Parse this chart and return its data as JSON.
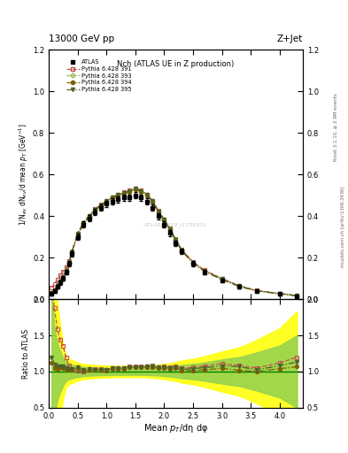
{
  "title_top": "13000 GeV pp",
  "title_right": "Z+Jet",
  "plot_title": "Nch (ATLAS UE in Z production)",
  "xlabel": "Mean $p_{T}$/dη dφ",
  "ylabel_main": "1/N$_{ev}$ dN$_{ev}$/d mean $p_{T}$ [GeV$^{-1}$]",
  "ylabel_ratio": "Ratio to ATLAS",
  "watermark": "ATLAS_2019_I1736531",
  "right_label_top": "Rivet 3.1.10, ≥ 2.9M events",
  "right_label_bot": "mcplots.cern.ch [arXiv:1306.3436]",
  "x_data": [
    0.05,
    0.1,
    0.15,
    0.2,
    0.25,
    0.3,
    0.35,
    0.4,
    0.5,
    0.6,
    0.7,
    0.8,
    0.9,
    1.0,
    1.1,
    1.2,
    1.3,
    1.4,
    1.5,
    1.6,
    1.7,
    1.8,
    1.9,
    2.0,
    2.1,
    2.2,
    2.3,
    2.5,
    2.7,
    3.0,
    3.3,
    3.6,
    4.0,
    4.3
  ],
  "atlas_y": [
    0.025,
    0.04,
    0.06,
    0.08,
    0.1,
    0.13,
    0.17,
    0.22,
    0.3,
    0.36,
    0.39,
    0.42,
    0.44,
    0.46,
    0.47,
    0.48,
    0.49,
    0.49,
    0.5,
    0.49,
    0.47,
    0.44,
    0.4,
    0.36,
    0.32,
    0.27,
    0.23,
    0.17,
    0.13,
    0.09,
    0.06,
    0.04,
    0.025,
    0.015
  ],
  "atlas_err": [
    0.008,
    0.008,
    0.009,
    0.01,
    0.01,
    0.011,
    0.012,
    0.014,
    0.015,
    0.015,
    0.015,
    0.015,
    0.015,
    0.015,
    0.015,
    0.015,
    0.015,
    0.015,
    0.015,
    0.015,
    0.015,
    0.015,
    0.015,
    0.015,
    0.015,
    0.014,
    0.014,
    0.012,
    0.011,
    0.01,
    0.008,
    0.007,
    0.006,
    0.005
  ],
  "py391_y": [
    0.055,
    0.075,
    0.095,
    0.115,
    0.135,
    0.155,
    0.185,
    0.225,
    0.305,
    0.36,
    0.4,
    0.435,
    0.455,
    0.47,
    0.49,
    0.505,
    0.515,
    0.525,
    0.535,
    0.525,
    0.505,
    0.475,
    0.425,
    0.385,
    0.34,
    0.29,
    0.24,
    0.18,
    0.14,
    0.1,
    0.065,
    0.042,
    0.028,
    0.018
  ],
  "py393_y": [
    0.03,
    0.044,
    0.064,
    0.086,
    0.107,
    0.137,
    0.177,
    0.227,
    0.317,
    0.367,
    0.402,
    0.432,
    0.452,
    0.472,
    0.492,
    0.502,
    0.512,
    0.522,
    0.532,
    0.522,
    0.502,
    0.472,
    0.422,
    0.382,
    0.337,
    0.287,
    0.237,
    0.177,
    0.137,
    0.097,
    0.064,
    0.041,
    0.027,
    0.017
  ],
  "py394_y": [
    0.028,
    0.042,
    0.062,
    0.085,
    0.105,
    0.135,
    0.175,
    0.225,
    0.315,
    0.365,
    0.398,
    0.428,
    0.448,
    0.468,
    0.488,
    0.498,
    0.508,
    0.518,
    0.528,
    0.518,
    0.498,
    0.468,
    0.418,
    0.378,
    0.333,
    0.283,
    0.233,
    0.173,
    0.133,
    0.094,
    0.061,
    0.04,
    0.026,
    0.016
  ],
  "py395_y": [
    0.03,
    0.044,
    0.064,
    0.086,
    0.107,
    0.137,
    0.177,
    0.227,
    0.317,
    0.367,
    0.402,
    0.432,
    0.452,
    0.472,
    0.492,
    0.502,
    0.512,
    0.522,
    0.532,
    0.522,
    0.502,
    0.472,
    0.422,
    0.382,
    0.337,
    0.287,
    0.237,
    0.177,
    0.137,
    0.097,
    0.064,
    0.041,
    0.027,
    0.017
  ],
  "color_391": "#c0504d",
  "color_393": "#9bbb59",
  "color_394": "#7f6000",
  "color_395": "#4f6228",
  "band_yellow": "#ffff00",
  "band_green": "#92d050",
  "xlim": [
    0.0,
    4.4
  ],
  "ylim_main": [
    0.0,
    1.2
  ],
  "ylim_ratio": [
    0.5,
    2.0
  ],
  "yticks_main": [
    0.0,
    0.2,
    0.4,
    0.6,
    0.8,
    1.0,
    1.2
  ],
  "yticks_ratio": [
    0.5,
    1.0,
    1.5,
    2.0
  ],
  "legend_entries": [
    "ATLAS",
    "Pythia 6.428 391",
    "Pythia 6.428 393",
    "Pythia 6.428 394",
    "Pythia 6.428 395"
  ]
}
